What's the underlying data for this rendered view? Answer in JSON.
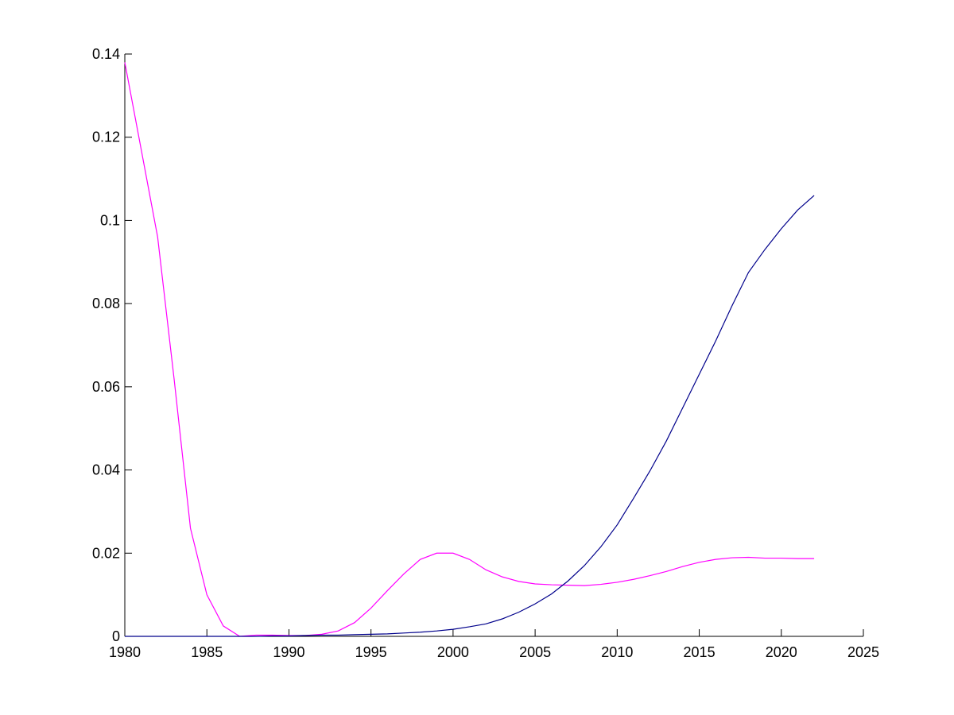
{
  "chart_data": {
    "type": "line",
    "x": [
      1980,
      1981,
      1982,
      1983,
      1984,
      1985,
      1986,
      1987,
      1988,
      1989,
      1990,
      1991,
      1992,
      1993,
      1994,
      1995,
      1996,
      1997,
      1998,
      1999,
      2000,
      2001,
      2002,
      2003,
      2004,
      2005,
      2006,
      2007,
      2008,
      2009,
      2010,
      2011,
      2012,
      2013,
      2014,
      2015,
      2016,
      2017,
      2018,
      2019,
      2020,
      2021,
      2022
    ],
    "series": [
      {
        "color": "#ff00ff",
        "values": [
          0.138,
          0.117,
          0.096,
          0.062,
          0.026,
          0.01,
          0.0025,
          0,
          0.0003,
          0.0003,
          0.0002,
          0.0002,
          0.0005,
          0.0013,
          0.0033,
          0.0068,
          0.011,
          0.015,
          0.0185,
          0.02,
          0.02,
          0.0185,
          0.016,
          0.0143,
          0.0132,
          0.0126,
          0.0124,
          0.0123,
          0.0122,
          0.0125,
          0.013,
          0.0137,
          0.0146,
          0.0156,
          0.0168,
          0.0178,
          0.0185,
          0.0189,
          0.019,
          0.0188,
          0.0188,
          0.0187,
          0.0187
        ]
      },
      {
        "color": "#00008b",
        "values": [
          0,
          0,
          0,
          0,
          0,
          0,
          0,
          0,
          0,
          0.0001,
          0.0001,
          0.0002,
          0.0003,
          0.0003,
          0.0004,
          0.0005,
          0.0006,
          0.0008,
          0.001,
          0.0013,
          0.0017,
          0.0023,
          0.003,
          0.0042,
          0.0058,
          0.0078,
          0.0102,
          0.0133,
          0.017,
          0.0215,
          0.0268,
          0.0332,
          0.0398,
          0.047,
          0.055,
          0.063,
          0.071,
          0.0795,
          0.0875,
          0.093,
          0.098,
          0.1025,
          0.106
        ]
      }
    ],
    "xlim": [
      1980,
      2025
    ],
    "xticks": [
      1980,
      1985,
      1990,
      1995,
      2000,
      2005,
      2010,
      2015,
      2020,
      2025
    ],
    "ylim": [
      0,
      0.14
    ],
    "yticks": [
      0,
      0.02,
      0.04,
      0.06,
      0.08,
      0.1,
      0.12,
      0.14
    ]
  }
}
